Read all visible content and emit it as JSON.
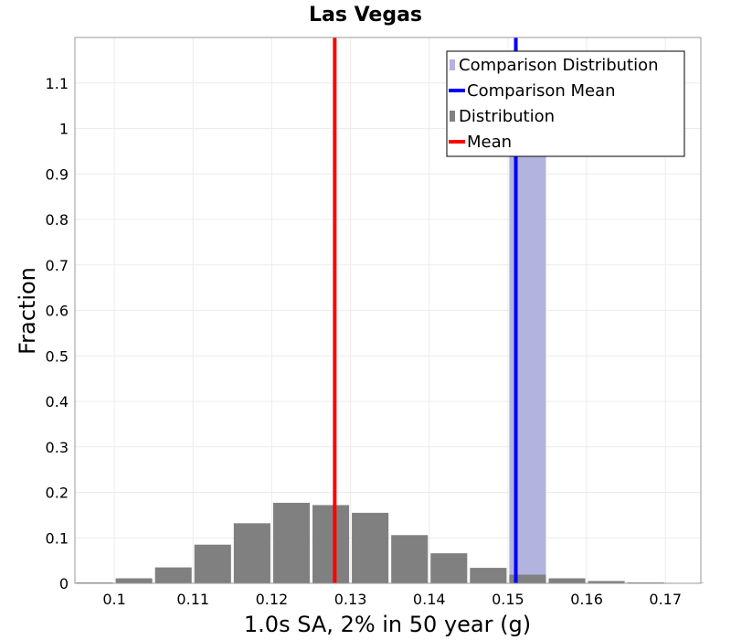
{
  "chart_data": {
    "type": "bar",
    "title": "Las Vegas",
    "xlabel": "1.0s SA, 2% in 50 year (g)",
    "ylabel": "Fraction",
    "xlim": [
      0.095,
      0.1745
    ],
    "ylim": [
      0,
      1.2
    ],
    "grid": true,
    "legend_position": "top-right",
    "x_ticks": [
      {
        "value": 0.1,
        "label": "0.1"
      },
      {
        "value": 0.11,
        "label": "0.11"
      },
      {
        "value": 0.12,
        "label": "0.12"
      },
      {
        "value": 0.13,
        "label": "0.13"
      },
      {
        "value": 0.14,
        "label": "0.14"
      },
      {
        "value": 0.15,
        "label": "0.15"
      },
      {
        "value": 0.16,
        "label": "0.16"
      },
      {
        "value": 0.17,
        "label": "0.17"
      }
    ],
    "y_ticks": [
      {
        "value": 0,
        "label": "0"
      },
      {
        "value": 0.1,
        "label": "0.1"
      },
      {
        "value": 0.2,
        "label": "0.2"
      },
      {
        "value": 0.3,
        "label": "0.3"
      },
      {
        "value": 0.4,
        "label": "0.4"
      },
      {
        "value": 0.5,
        "label": "0.5"
      },
      {
        "value": 0.6,
        "label": "0.6"
      },
      {
        "value": 0.7,
        "label": "0.7"
      },
      {
        "value": 0.8,
        "label": "0.8"
      },
      {
        "value": 0.9,
        "label": "0.9"
      },
      {
        "value": 1,
        "label": "1"
      },
      {
        "value": 1.1,
        "label": "1.1"
      }
    ],
    "bin_width": 0.005,
    "series": [
      {
        "name": "Comparison Distribution",
        "kind": "bar",
        "color": "#b3b3e0",
        "bins": [
          {
            "x": 0.1525,
            "value": 1.0
          }
        ]
      },
      {
        "name": "Comparison Mean",
        "kind": "vline",
        "color": "#0000ff",
        "x": 0.151
      },
      {
        "name": "Distribution",
        "kind": "bar",
        "color": "#808080",
        "bins": [
          {
            "x": 0.0975,
            "value": 0.002
          },
          {
            "x": 0.1025,
            "value": 0.011
          },
          {
            "x": 0.1075,
            "value": 0.035
          },
          {
            "x": 0.1125,
            "value": 0.085
          },
          {
            "x": 0.1175,
            "value": 0.132
          },
          {
            "x": 0.1225,
            "value": 0.177
          },
          {
            "x": 0.1275,
            "value": 0.172
          },
          {
            "x": 0.1325,
            "value": 0.155
          },
          {
            "x": 0.1375,
            "value": 0.106
          },
          {
            "x": 0.1425,
            "value": 0.066
          },
          {
            "x": 0.1475,
            "value": 0.034
          },
          {
            "x": 0.1525,
            "value": 0.019
          },
          {
            "x": 0.1575,
            "value": 0.011
          },
          {
            "x": 0.1625,
            "value": 0.005
          },
          {
            "x": 0.1675,
            "value": 0.002
          },
          {
            "x": 0.1725,
            "value": 0.001
          }
        ]
      },
      {
        "name": "Mean",
        "kind": "vline",
        "color": "#ff0000",
        "x": 0.128
      }
    ]
  }
}
